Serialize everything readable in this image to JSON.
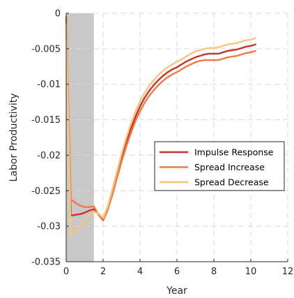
{
  "chart_data": {
    "type": "line",
    "xlabel": "Year",
    "ylabel": "Labor Productivity",
    "xlim": [
      0,
      12
    ],
    "ylim": [
      -0.035,
      0
    ],
    "xticks": [
      0,
      2,
      4,
      6,
      8,
      10,
      12
    ],
    "yticks": [
      0,
      -0.005,
      -0.01,
      -0.015,
      -0.02,
      -0.025,
      -0.03,
      -0.035
    ],
    "xtick_labels": [
      "0",
      "2",
      "4",
      "6",
      "8",
      "10",
      "12"
    ],
    "ytick_labels": [
      "0",
      "-0.005",
      "-0.01",
      "-0.015",
      "-0.02",
      "-0.025",
      "-0.03",
      "-0.035"
    ],
    "grid": true,
    "legend_position": "right",
    "shaded_region": {
      "x": [
        0,
        1.5
      ],
      "color": "#c8c8c8"
    },
    "x": [
      0,
      0.25,
      0.5,
      0.75,
      1,
      1.25,
      1.5,
      1.75,
      2,
      2.25,
      2.5,
      2.75,
      3,
      3.25,
      3.5,
      3.75,
      4,
      4.25,
      4.5,
      4.75,
      5,
      5.25,
      5.5,
      5.75,
      6,
      6.25,
      6.5,
      6.75,
      7,
      7.25,
      7.5,
      7.75,
      8,
      8.25,
      8.5,
      8.75,
      9,
      9.25,
      9.5,
      9.75,
      10,
      10.25
    ],
    "series": [
      {
        "name": "Impulse Response",
        "color": "#c8312c",
        "values": [
          -0.001,
          -0.0285,
          -0.0284,
          -0.0283,
          -0.0281,
          -0.0278,
          -0.0276,
          -0.0283,
          -0.029,
          -0.0275,
          -0.0252,
          -0.0228,
          -0.0205,
          -0.0183,
          -0.0163,
          -0.0146,
          -0.0131,
          -0.0119,
          -0.0109,
          -0.0101,
          -0.0094,
          -0.0088,
          -0.0083,
          -0.0079,
          -0.0076,
          -0.0072,
          -0.0068,
          -0.0065,
          -0.0062,
          -0.006,
          -0.0058,
          -0.0057,
          -0.0057,
          -0.0057,
          -0.0055,
          -0.0053,
          -0.0052,
          -0.0051,
          -0.0049,
          -0.0047,
          -0.0046,
          -0.0044
        ]
      },
      {
        "name": "Spread Increase",
        "color": "#ef7a45",
        "values": [
          -0.0005,
          -0.0262,
          -0.0267,
          -0.0271,
          -0.0273,
          -0.0273,
          -0.0272,
          -0.0284,
          -0.0292,
          -0.0277,
          -0.0256,
          -0.0232,
          -0.0209,
          -0.0188,
          -0.0169,
          -0.0152,
          -0.0138,
          -0.0126,
          -0.0116,
          -0.0108,
          -0.0101,
          -0.0095,
          -0.009,
          -0.0086,
          -0.0083,
          -0.0079,
          -0.0075,
          -0.0072,
          -0.0069,
          -0.0067,
          -0.0066,
          -0.0066,
          -0.0066,
          -0.0066,
          -0.0064,
          -0.0062,
          -0.0061,
          -0.006,
          -0.0058,
          -0.0056,
          -0.0055,
          -0.0053
        ]
      },
      {
        "name": "Spread Decrease",
        "color": "#f6c679",
        "values": [
          -0.0015,
          -0.0314,
          -0.0307,
          -0.0299,
          -0.0292,
          -0.0285,
          -0.028,
          -0.0282,
          -0.0288,
          -0.0272,
          -0.0248,
          -0.0223,
          -0.0198,
          -0.0176,
          -0.0156,
          -0.0139,
          -0.0124,
          -0.0112,
          -0.0102,
          -0.0094,
          -0.0087,
          -0.0081,
          -0.0076,
          -0.0072,
          -0.0068,
          -0.0065,
          -0.0061,
          -0.0057,
          -0.0054,
          -0.0052,
          -0.005,
          -0.0049,
          -0.0049,
          -0.0048,
          -0.0046,
          -0.0044,
          -0.0043,
          -0.0042,
          -0.004,
          -0.0038,
          -0.0037,
          -0.0035
        ]
      }
    ]
  }
}
